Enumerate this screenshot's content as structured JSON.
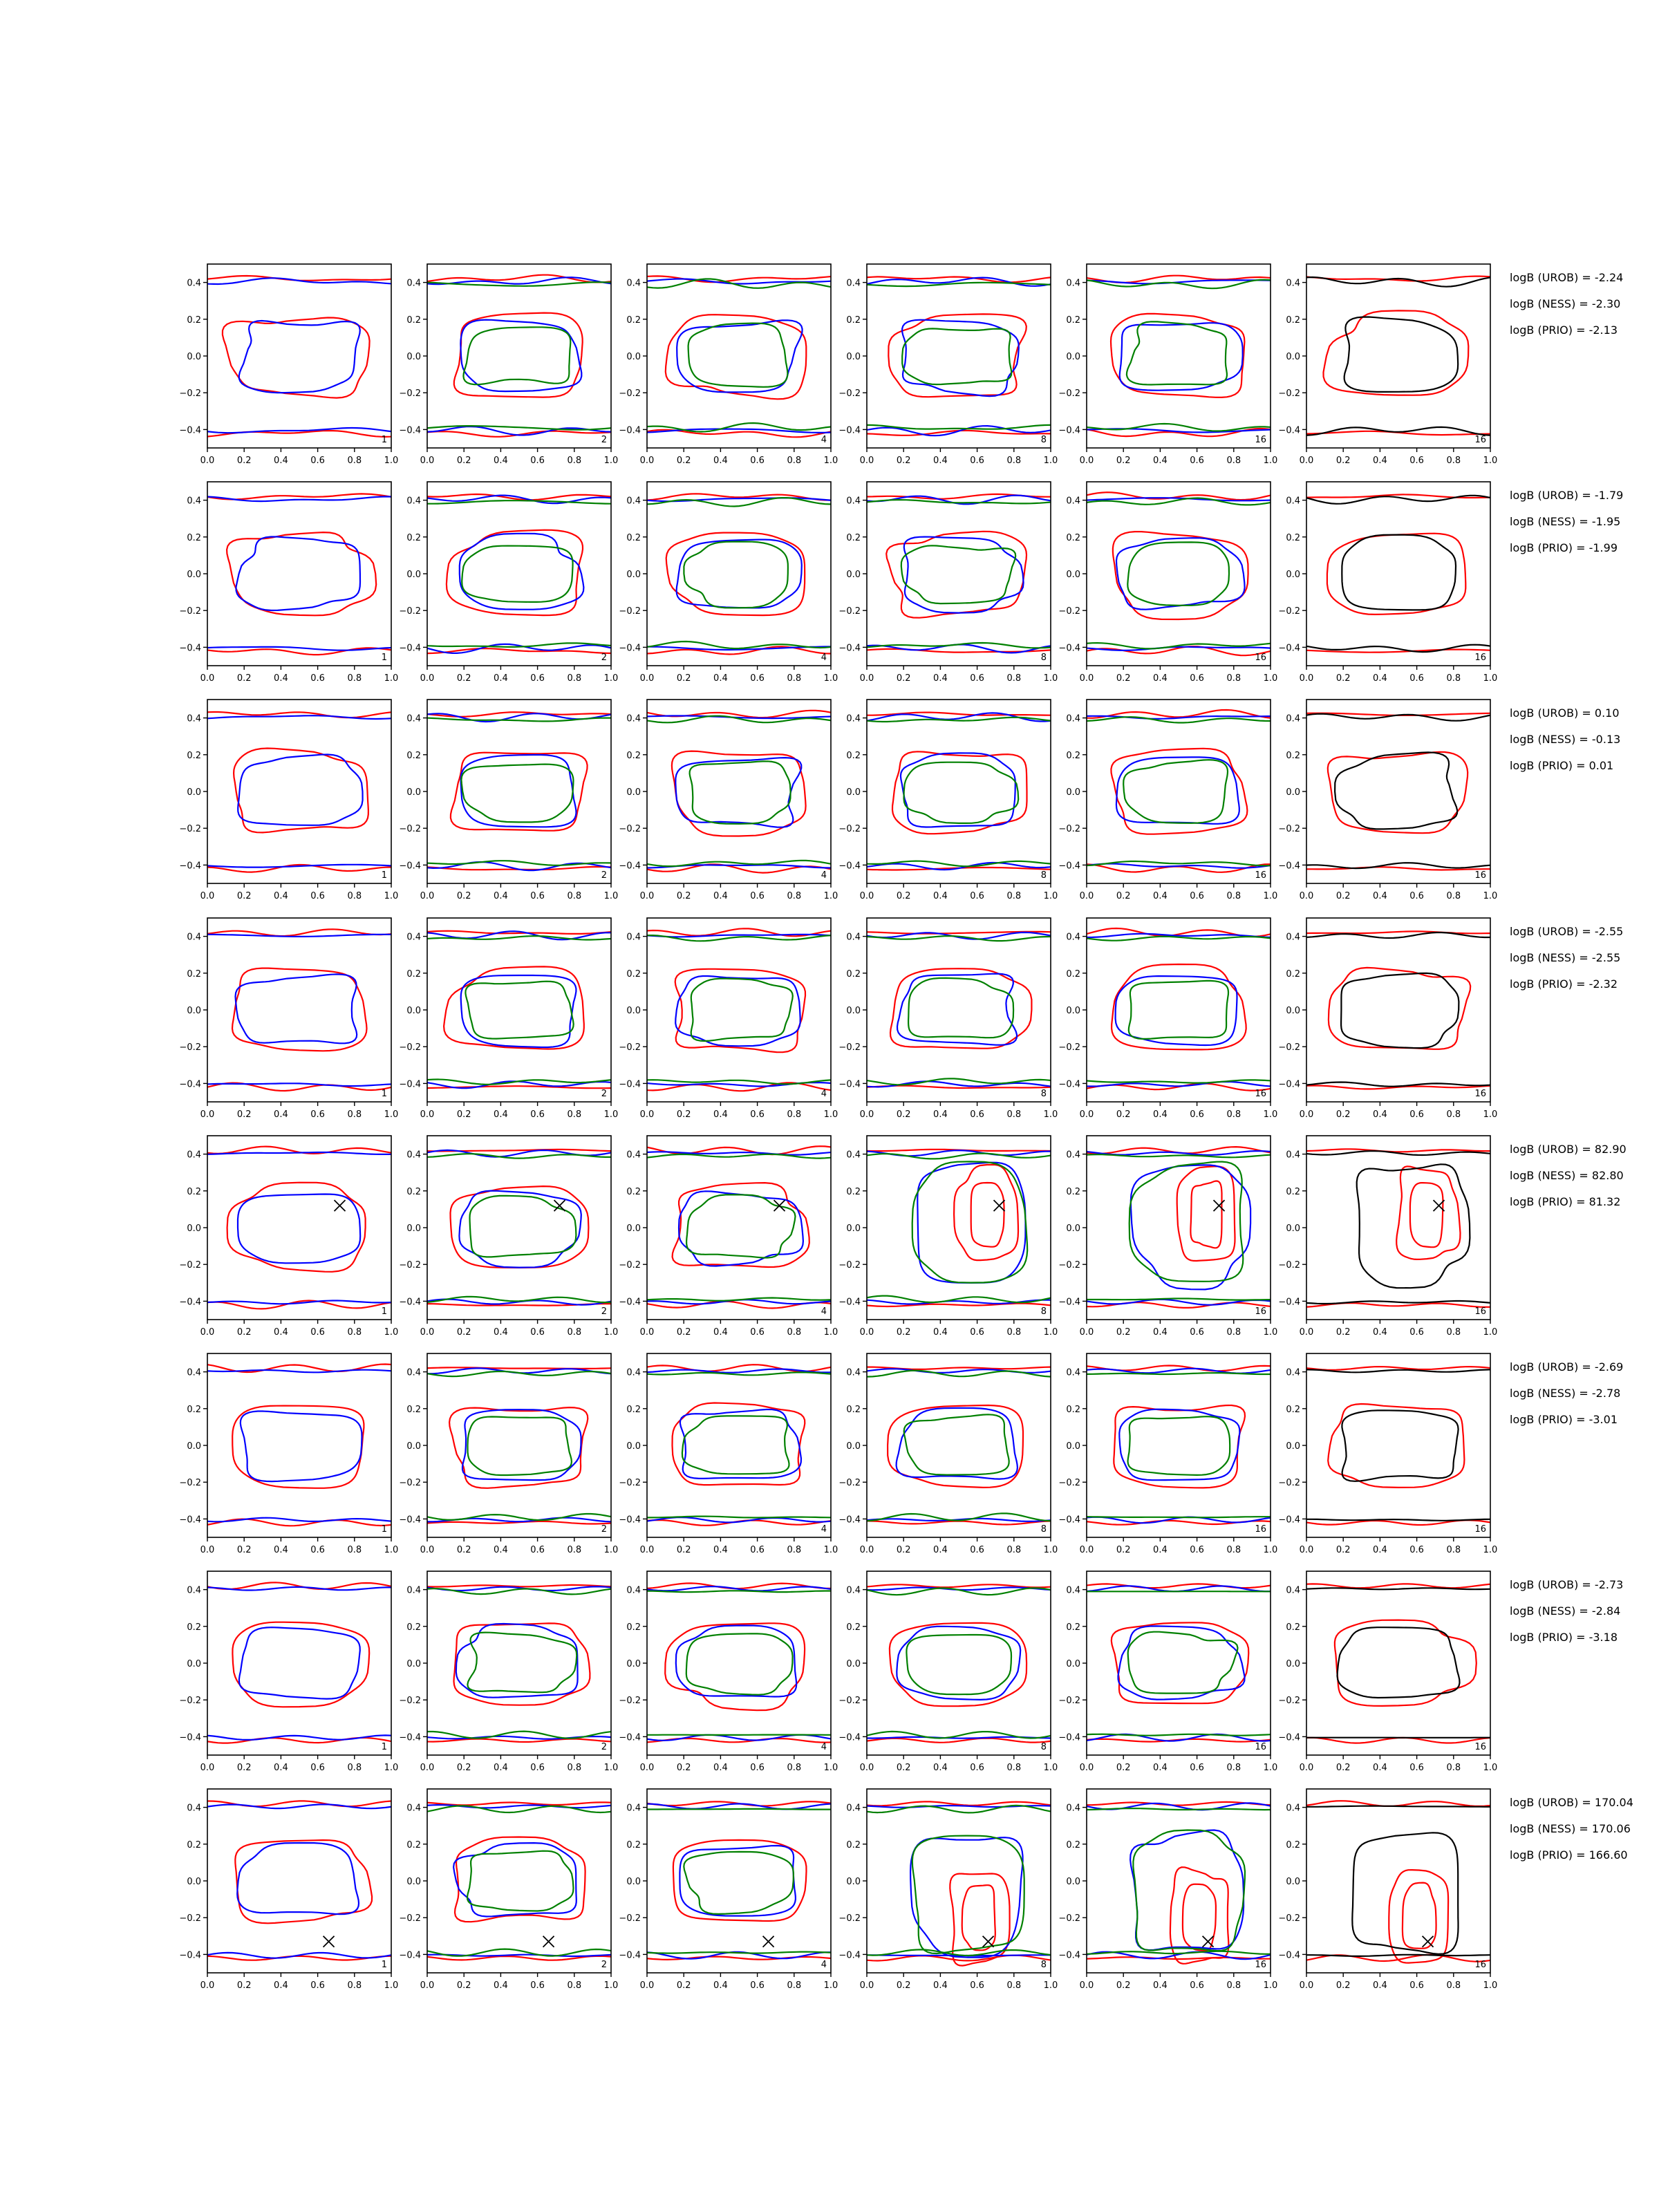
{
  "chart_data": {
    "type": "contour-grid",
    "xlim": [
      0.0,
      1.0
    ],
    "ylim": [
      -0.5,
      0.5
    ],
    "xticks": [
      "0.0",
      "0.2",
      "0.4",
      "0.6",
      "0.8",
      "1.0"
    ],
    "yticks": [
      "0.4",
      "0.2",
      "0.0",
      "−0.2",
      "−0.4"
    ],
    "column_labels": [
      "1",
      "2",
      "4",
      "8",
      "16",
      "16"
    ],
    "colors": {
      "red": "#ff0000",
      "blue": "#0000ff",
      "green": "#008000",
      "black": "#000000"
    },
    "column_colors": [
      [
        "red",
        "blue"
      ],
      [
        "red",
        "blue",
        "green"
      ],
      [
        "red",
        "blue",
        "green"
      ],
      [
        "red",
        "blue",
        "green"
      ],
      [
        "red",
        "blue",
        "green"
      ],
      [
        "red",
        "black"
      ]
    ],
    "rows": [
      {
        "annotations": [
          "logB (UROB) = -2.24",
          "logB (NESS) = -2.30",
          "logB (PRIO) = -2.13"
        ],
        "marker": null
      },
      {
        "annotations": [
          "logB (UROB) = -1.79",
          "logB (NESS) = -1.95",
          "logB (PRIO) = -1.99"
        ],
        "marker": null
      },
      {
        "annotations": [
          "logB (UROB) = 0.10",
          "logB (NESS) = -0.13",
          "logB (PRIO) = 0.01"
        ],
        "marker": null
      },
      {
        "annotations": [
          "logB (UROB) = -2.55",
          "logB (NESS) = -2.55",
          "logB (PRIO) = -2.32"
        ],
        "marker": null
      },
      {
        "annotations": [
          "logB (UROB) = 82.90",
          "logB (NESS) = 82.80",
          "logB (PRIO) = 81.32"
        ],
        "marker": [
          0.72,
          0.12
        ]
      },
      {
        "annotations": [
          "logB (UROB) = -2.69",
          "logB (NESS) = -2.78",
          "logB (PRIO) = -3.01"
        ],
        "marker": null
      },
      {
        "annotations": [
          "logB (UROB) = -2.73",
          "logB (NESS) = -2.84",
          "logB (PRIO) = -3.18"
        ],
        "marker": null
      },
      {
        "annotations": [
          "logB (UROB) = 170.04",
          "logB (NESS) = 170.06",
          "logB (PRIO) = 166.60"
        ],
        "marker": [
          0.66,
          -0.33
        ]
      }
    ]
  }
}
